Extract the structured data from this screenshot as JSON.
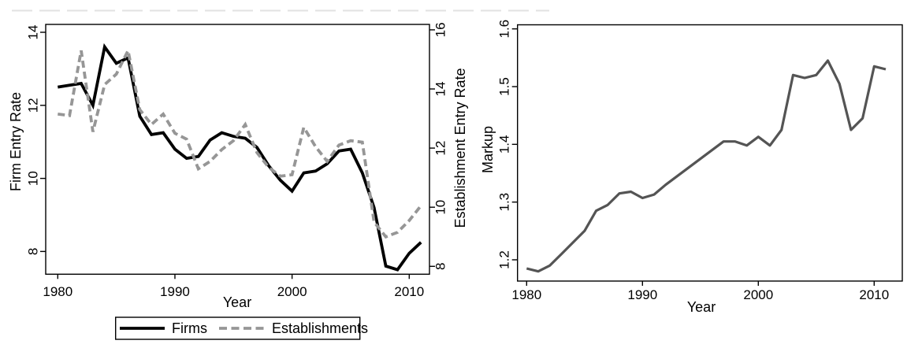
{
  "figure": {
    "background": "#ffffff",
    "border_color": "#000000",
    "artifact_line_color": "#e2e2e2"
  },
  "chart_data": [
    {
      "type": "line",
      "title": "",
      "xlabel": "Year",
      "x_ticks": [
        1980,
        1990,
        2000,
        2010
      ],
      "x": [
        1980,
        1981,
        1982,
        1983,
        1984,
        1985,
        1986,
        1987,
        1988,
        1989,
        1990,
        1991,
        1992,
        1993,
        1994,
        1995,
        1996,
        1997,
        1998,
        1999,
        2000,
        2001,
        2002,
        2003,
        2004,
        2005,
        2006,
        2007,
        2008,
        2009,
        2010,
        2011
      ],
      "left_axis": {
        "label": "Firm Entry Rate",
        "ticks": [
          8,
          10,
          12,
          14
        ],
        "range": [
          7.4,
          14.2
        ]
      },
      "right_axis": {
        "label": "Establishment Entry Rate",
        "ticks": [
          8,
          10,
          12,
          14,
          16
        ],
        "range": [
          7.7,
          16.2
        ]
      },
      "grid": false,
      "legend": {
        "position": "bottom"
      },
      "series": [
        {
          "name": "Firms",
          "axis": "left",
          "style": "solid",
          "color": "#000000",
          "values": [
            12.5,
            12.55,
            12.6,
            12.0,
            13.6,
            13.15,
            13.3,
            11.7,
            11.2,
            11.25,
            10.8,
            10.55,
            10.6,
            11.05,
            11.25,
            11.15,
            11.1,
            10.85,
            10.35,
            9.95,
            9.65,
            10.15,
            10.2,
            10.4,
            10.75,
            10.8,
            10.15,
            9.2,
            7.6,
            7.5,
            7.95,
            8.25
          ]
        },
        {
          "name": "Establishments",
          "axis": "right",
          "style": "dashed",
          "color": "#969696",
          "values": [
            13.15,
            13.1,
            15.3,
            12.55,
            14.15,
            14.5,
            15.3,
            13.3,
            12.8,
            13.15,
            12.5,
            12.3,
            11.3,
            11.55,
            11.95,
            12.25,
            12.8,
            11.85,
            11.35,
            11.05,
            11.1,
            12.7,
            12.05,
            11.55,
            12.1,
            12.25,
            12.2,
            9.5,
            9.0,
            9.15,
            9.55,
            10.05
          ]
        }
      ]
    },
    {
      "type": "line",
      "title": "",
      "xlabel": "Year",
      "x_ticks": [
        1980,
        1990,
        2000,
        2010
      ],
      "x": [
        1980,
        1981,
        1982,
        1983,
        1984,
        1985,
        1986,
        1987,
        1988,
        1989,
        1990,
        1991,
        1992,
        1993,
        1994,
        1995,
        1996,
        1997,
        1998,
        1999,
        2000,
        2001,
        2002,
        2003,
        2004,
        2005,
        2006,
        2007,
        2008,
        2009,
        2010,
        2011
      ],
      "y_axis": {
        "label": "Markup",
        "ticks": [
          1.2,
          1.3,
          1.4,
          1.5,
          1.6
        ],
        "range": [
          1.165,
          1.61
        ]
      },
      "grid": false,
      "series": [
        {
          "name": "Markup",
          "style": "solid",
          "color": "#545454",
          "values": [
            1.185,
            1.18,
            1.19,
            1.21,
            1.23,
            1.25,
            1.285,
            1.295,
            1.315,
            1.318,
            1.307,
            1.313,
            1.33,
            1.345,
            1.36,
            1.375,
            1.39,
            1.405,
            1.405,
            1.398,
            1.413,
            1.398,
            1.425,
            1.52,
            1.515,
            1.52,
            1.545,
            1.505,
            1.425,
            1.445,
            1.535,
            1.53
          ]
        }
      ]
    }
  ]
}
